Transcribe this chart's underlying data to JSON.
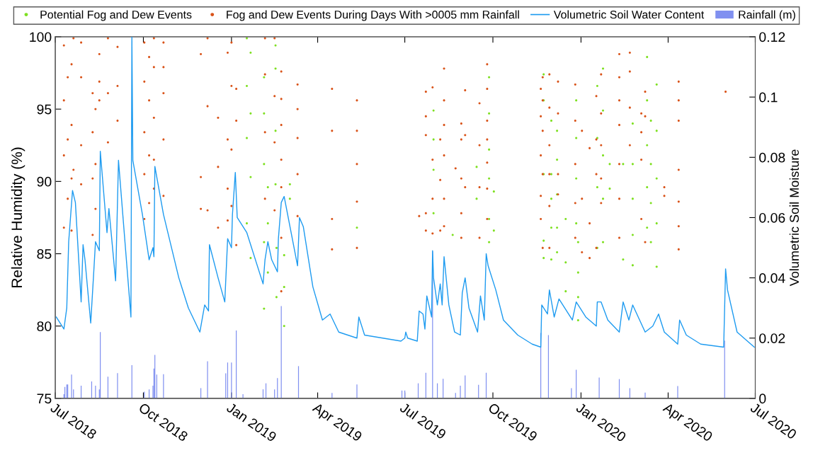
{
  "chart_data": {
    "type": "scatter",
    "ylabel": "Relative Humidity (%)",
    "y2label": "Volumetric Soil Moisture",
    "legend": "top",
    "marker": "circle",
    "xlim": [
      "2018-07-01",
      "2020-07-01"
    ],
    "xticks": [
      {
        "value": "2018-07-01",
        "label": "Jul 2018"
      },
      {
        "value": "2018-10-01",
        "label": "Oct 2018"
      },
      {
        "value": "2019-01-01",
        "label": "Jan 2019"
      },
      {
        "value": "2019-04-01",
        "label": "Apr 2019"
      },
      {
        "value": "2019-07-01",
        "label": "Jul 2019"
      },
      {
        "value": "2019-10-01",
        "label": "Oct 2019"
      },
      {
        "value": "2020-01-01",
        "label": "Jan 2020"
      },
      {
        "value": "2020-04-01",
        "label": "Apr 2020"
      },
      {
        "value": "2020-07-01",
        "label": "Jul 2020"
      }
    ],
    "ylim": [
      75,
      100
    ],
    "yticks": [
      75,
      80,
      85,
      90,
      95,
      100
    ],
    "y2lim": [
      0,
      0.12
    ],
    "y2ticks": [
      0,
      0.02,
      0.04,
      0.06,
      0.08,
      0.1,
      0.12
    ],
    "series": [
      {
        "name": "Potential Fog and Dew Events",
        "color": "#7ee021",
        "x": [
          "2019-01-17",
          "2019-01-17",
          "2019-01-17",
          "2019-01-17",
          "2019-01-21",
          "2019-01-21",
          "2019-01-21",
          "2019-01-21",
          "2019-02-04",
          "2019-02-04",
          "2019-02-04",
          "2019-02-04",
          "2019-02-04",
          "2019-02-08",
          "2019-02-08",
          "2019-02-08",
          "2019-02-16",
          "2019-02-16",
          "2019-02-16",
          "2019-02-16",
          "2019-02-17",
          "2019-02-17",
          "2019-02-25",
          "2019-02-25",
          "2019-02-25",
          "2019-03-03",
          "2019-03-03",
          "2019-05-12",
          "2019-07-31",
          "2019-07-31",
          "2019-07-31",
          "2019-07-31",
          "2019-08-20",
          "2019-09-14",
          "2019-09-14",
          "2019-09-27",
          "2019-09-27",
          "2019-09-27",
          "2019-09-27",
          "2019-09-27",
          "2019-09-27",
          "2019-10-02",
          "2019-10-02",
          "2019-11-23",
          "2019-11-23",
          "2019-11-23",
          "2019-11-23",
          "2019-11-23",
          "2019-12-01",
          "2019-12-01",
          "2019-12-01",
          "2019-12-01",
          "2019-12-01",
          "2019-12-07",
          "2019-12-07",
          "2019-12-07",
          "2019-12-07",
          "2019-12-07",
          "2019-12-16",
          "2019-12-16",
          "2019-12-16",
          "2019-12-27",
          "2019-12-27",
          "2019-12-27",
          "2019-12-27",
          "2019-12-29",
          "2019-12-29",
          "2019-12-29",
          "2019-12-29",
          "2020-01-18",
          "2020-01-18",
          "2020-01-18",
          "2020-01-18",
          "2020-01-24",
          "2020-01-24",
          "2020-01-24",
          "2020-01-24",
          "2020-01-24",
          "2020-01-31",
          "2020-01-31",
          "2020-02-14",
          "2020-02-14",
          "2020-02-24",
          "2020-02-24",
          "2020-02-24",
          "2020-02-24",
          "2020-02-24",
          "2020-03-10",
          "2020-03-10",
          "2020-03-10",
          "2020-03-10",
          "2020-03-10",
          "2020-03-14",
          "2020-03-14",
          "2020-03-14",
          "2020-03-14",
          "2020-03-20",
          "2020-03-20",
          "2020-03-20",
          "2020-03-20",
          "2020-03-20"
        ],
        "values": [
          99.9,
          96.6,
          93.0,
          87.1,
          98.9,
          94.7,
          90.3,
          84.7,
          97.2,
          94.7,
          91.2,
          85.8,
          81.2,
          89.6,
          87.1,
          83.7,
          99.4,
          97.8,
          93.5,
          89.8,
          85.4,
          82.0,
          84.9,
          82.7,
          80.0,
          89.8,
          88.8,
          86.8,
          94.9,
          92.9,
          90.8,
          87.8,
          86.3,
          91.0,
          88.8,
          97.2,
          94.7,
          92.2,
          90.2,
          87.4,
          85.8,
          89.3,
          86.6,
          97.4,
          95.6,
          90.5,
          85.9,
          84.7,
          94.2,
          90.5,
          88.8,
          86.8,
          84.6,
          93.5,
          91.5,
          89.1,
          86.8,
          85.1,
          87.4,
          84.4,
          82.4,
          95.6,
          93.0,
          90.2,
          87.1,
          85.8,
          83.7,
          82.0,
          80.4,
          96.6,
          93.0,
          89.6,
          85.4,
          97.8,
          94.9,
          91.8,
          88.8,
          85.8,
          91.2,
          89.5,
          91.2,
          84.6,
          94.0,
          91.2,
          88.8,
          86.3,
          84.2,
          98.6,
          95.6,
          92.5,
          89.6,
          86.8,
          94.2,
          91.2,
          88.5,
          85.8,
          96.7,
          93.5,
          90.2,
          87.1,
          84.1
        ]
      },
      {
        "name": "Fog and Dew Events During Days With >0005 mm Rainfall",
        "color": "#d95319",
        "x": [
          "2018-07-10",
          "2018-07-10",
          "2018-07-10",
          "2018-07-10",
          "2018-07-14",
          "2018-07-14",
          "2018-07-14",
          "2018-07-18",
          "2018-07-18",
          "2018-07-18",
          "2018-07-18",
          "2018-07-20",
          "2018-07-20",
          "2018-07-28",
          "2018-07-28",
          "2018-07-28",
          "2018-07-28",
          "2018-08-09",
          "2018-08-09",
          "2018-08-09",
          "2018-08-09",
          "2018-08-12",
          "2018-08-12",
          "2018-08-12",
          "2018-08-16",
          "2018-08-16",
          "2018-08-16",
          "2018-08-25",
          "2018-08-25",
          "2018-08-25",
          "2018-09-04",
          "2018-09-04",
          "2018-09-04",
          "2018-10-02",
          "2018-10-02",
          "2018-10-02",
          "2018-10-02",
          "2018-10-02",
          "2018-10-07",
          "2018-10-07",
          "2018-10-07",
          "2018-10-07",
          "2018-10-12",
          "2018-10-12",
          "2018-10-12",
          "2018-10-12",
          "2018-10-12",
          "2018-10-22",
          "2018-10-22",
          "2018-10-22",
          "2018-10-22",
          "2018-10-22",
          "2018-11-30",
          "2018-11-30",
          "2018-11-30",
          "2018-12-07",
          "2018-12-07",
          "2018-12-07",
          "2018-12-18",
          "2018-12-18",
          "2018-12-18",
          "2018-12-28",
          "2018-12-28",
          "2018-12-28",
          "2018-12-28",
          "2019-01-01",
          "2019-01-01",
          "2019-01-01",
          "2019-01-01",
          "2019-01-06",
          "2019-01-06",
          "2019-01-06",
          "2019-02-05",
          "2019-02-05",
          "2019-02-05",
          "2019-02-05",
          "2019-02-15",
          "2019-02-15",
          "2019-02-15",
          "2019-02-15",
          "2019-02-22",
          "2019-02-22",
          "2019-02-22",
          "2019-02-22",
          "2019-02-22",
          "2019-02-22",
          "2019-02-22",
          "2019-03-11",
          "2019-03-11",
          "2019-03-11",
          "2019-03-11",
          "2019-03-11",
          "2019-04-16",
          "2019-04-16",
          "2019-04-16",
          "2019-04-16",
          "2019-05-12",
          "2019-05-12",
          "2019-05-12",
          "2019-05-12",
          "2019-05-12",
          "2019-07-16",
          "2019-07-23",
          "2019-07-23",
          "2019-07-23",
          "2019-07-23",
          "2019-07-23",
          "2019-07-30",
          "2019-07-30",
          "2019-07-30",
          "2019-07-30",
          "2019-08-07",
          "2019-08-07",
          "2019-08-07",
          "2019-08-11",
          "2019-08-11",
          "2019-08-11",
          "2019-08-11",
          "2019-08-11",
          "2019-08-11",
          "2019-08-23",
          "2019-08-29",
          "2019-08-29",
          "2019-08-29",
          "2019-08-29",
          "2019-08-29",
          "2019-09-02",
          "2019-09-02",
          "2019-09-02",
          "2019-09-17",
          "2019-09-17",
          "2019-09-17",
          "2019-09-17",
          "2019-09-25",
          "2019-09-25",
          "2019-09-25",
          "2019-09-25",
          "2019-09-25",
          "2019-09-25",
          "2019-09-25",
          "2019-11-20",
          "2019-11-20",
          "2019-11-20",
          "2019-11-20",
          "2019-11-20",
          "2019-11-22",
          "2019-11-22",
          "2019-11-22",
          "2019-11-22",
          "2019-11-22",
          "2019-11-29",
          "2019-11-29",
          "2019-11-29",
          "2019-11-29",
          "2019-11-29",
          "2019-11-29",
          "2019-12-08",
          "2019-12-08",
          "2019-12-08",
          "2019-12-08",
          "2019-12-26",
          "2019-12-26",
          "2019-12-26",
          "2019-12-26",
          "2019-12-26",
          "2020-01-02",
          "2020-01-02",
          "2020-01-02",
          "2020-01-10",
          "2020-01-10",
          "2020-01-10",
          "2020-01-17",
          "2020-01-17",
          "2020-01-17",
          "2020-01-17",
          "2020-01-22",
          "2020-01-22",
          "2020-01-22",
          "2020-01-22",
          "2020-01-22",
          "2020-02-10",
          "2020-02-10",
          "2020-02-10",
          "2020-02-10",
          "2020-02-10",
          "2020-02-10",
          "2020-02-10",
          "2020-02-21",
          "2020-02-21",
          "2020-02-21",
          "2020-02-21",
          "2020-03-04",
          "2020-03-04",
          "2020-03-04",
          "2020-03-04",
          "2020-03-08",
          "2020-03-08",
          "2020-03-08",
          "2020-03-28",
          "2020-03-28",
          "2020-04-12",
          "2020-04-12",
          "2020-04-12",
          "2020-04-12",
          "2020-04-12",
          "2020-04-12",
          "2020-04-12",
          "2020-05-31"
        ],
        "values": [
          99.4,
          95.6,
          91.8,
          86.8,
          97.2,
          92.9,
          88.8,
          98.1,
          93.9,
          90.2,
          86.6,
          99.9,
          90.8,
          99.6,
          97.2,
          92.5,
          89.8,
          96.1,
          93.4,
          90.2,
          86.3,
          95.0,
          91.2,
          88.1,
          98.8,
          96.9,
          95.6,
          99.9,
          96.1,
          92.7,
          99.3,
          96.6,
          94.2,
          99.6,
          96.9,
          93.4,
          90.5,
          87.4,
          98.6,
          95.6,
          91.8,
          88.5,
          99.9,
          97.9,
          94.4,
          91.5,
          89.5,
          99.6,
          97.9,
          96.1,
          92.9,
          89.0,
          98.8,
          90.3,
          88.1,
          99.9,
          95.2,
          88.0,
          94.4,
          91.0,
          86.8,
          98.9,
          92.9,
          89.5,
          87.3,
          99.6,
          96.6,
          92.2,
          88.3,
          96.4,
          94.2,
          85.6,
          99.9,
          97.4,
          93.4,
          88.8,
          99.9,
          95.9,
          92.7,
          88.0,
          97.6,
          95.7,
          93.9,
          91.5,
          89.6,
          86.1,
          82.4,
          96.7,
          95.0,
          93.0,
          90.5,
          87.6,
          96.4,
          93.5,
          87.4,
          85.3,
          95.6,
          93.5,
          91.2,
          88.6,
          85.4,
          87.6,
          96.2,
          94.5,
          93.2,
          87.8,
          86.6,
          96.5,
          91.5,
          88.8,
          86.4,
          92.9,
          90.1,
          86.6,
          97.8,
          95.6,
          93.9,
          91.8,
          88.8,
          86.9,
          90.9,
          94.0,
          92.9,
          90.2,
          87.8,
          86.1,
          96.3,
          93.2,
          89.6,
          95.4,
          92.5,
          89.6,
          86.1,
          98.1,
          96.4,
          94.2,
          92.9,
          91.3,
          89.5,
          87.4,
          96.4,
          94.5,
          91.8,
          89.0,
          87.4,
          97.2,
          95.6,
          93.5,
          90.5,
          85.4,
          97.4,
          95.1,
          92.5,
          90.5,
          88.3,
          85.4,
          96.9,
          94.7,
          90.5,
          89.1,
          96.7,
          94.2,
          91.2,
          88.5,
          86.1,
          93.5,
          88.8,
          85.1,
          92.3,
          87.1,
          84.7,
          95.9,
          92.9,
          90.5,
          85.4,
          97.4,
          94.7,
          92.5,
          90.2,
          88.5,
          98.8,
          97.2,
          95.6,
          93.9,
          91.2,
          88.8,
          86.1,
          98.9,
          97.6,
          95.1,
          92.5,
          94.7,
          93.4,
          91.5,
          87.4,
          96.2,
          94.5,
          85.8,
          89.6,
          89.0,
          96.9,
          95.6,
          94.2,
          90.8,
          88.6,
          86.9,
          85.3,
          96.2
        ]
      },
      {
        "name": "Volumetric Soil Water Content",
        "type": "line",
        "marker": "none",
        "axis": "y2",
        "color": "#1e9bf0",
        "x": [
          "2018-07-02",
          "2018-07-10",
          "2018-07-13",
          "2018-07-15",
          "2018-07-19",
          "2018-07-22",
          "2018-07-28",
          "2018-07-30",
          "2018-08-01",
          "2018-08-07",
          "2018-08-10",
          "2018-08-12",
          "2018-08-16",
          "2018-08-17",
          "2018-08-24",
          "2018-08-26",
          "2018-09-02",
          "2018-09-05",
          "2018-09-18",
          "2018-09-19",
          "2018-09-20",
          "2018-09-30",
          "2018-10-07",
          "2018-10-11",
          "2018-10-12",
          "2018-10-13",
          "2018-10-22",
          "2018-11-07",
          "2018-11-17",
          "2018-11-29",
          "2018-12-04",
          "2018-12-08",
          "2018-12-09",
          "2018-12-18",
          "2018-12-25",
          "2018-12-28",
          "2019-01-01",
          "2019-01-02",
          "2019-01-05",
          "2019-01-07",
          "2019-01-17",
          "2019-02-03",
          "2019-02-05",
          "2019-02-08",
          "2019-02-12",
          "2019-02-18",
          "2019-02-19",
          "2019-02-22",
          "2019-02-25",
          "2019-03-11",
          "2019-03-13",
          "2019-03-17",
          "2019-03-27",
          "2019-04-06",
          "2019-04-14",
          "2019-04-23",
          "2019-05-12",
          "2019-05-14",
          "2019-05-20",
          "2019-06-27",
          "2019-07-01",
          "2019-07-02",
          "2019-07-04",
          "2019-07-14",
          "2019-07-16",
          "2019-07-20",
          "2019-07-22",
          "2019-07-24",
          "2019-07-29",
          "2019-07-30",
          "2019-07-31",
          "2019-08-04",
          "2019-08-07",
          "2019-08-09",
          "2019-08-11",
          "2019-08-16",
          "2019-08-22",
          "2019-08-28",
          "2019-08-30",
          "2019-09-02",
          "2019-09-06",
          "2019-09-15",
          "2019-09-18",
          "2019-09-22",
          "2019-09-24",
          "2019-09-26",
          "2019-10-04",
          "2019-10-12",
          "2019-10-27",
          "2019-11-11",
          "2019-11-20",
          "2019-11-21",
          "2019-11-27",
          "2019-11-29",
          "2019-12-04",
          "2019-12-09",
          "2019-12-23",
          "2019-12-27",
          "2020-01-06",
          "2020-01-17",
          "2020-01-18",
          "2020-01-22",
          "2020-01-29",
          "2020-02-10",
          "2020-02-14",
          "2020-02-20",
          "2020-02-24",
          "2020-03-08",
          "2020-03-16",
          "2020-03-22",
          "2020-03-28",
          "2020-04-11",
          "2020-04-13",
          "2020-04-20",
          "2020-05-05",
          "2020-05-29",
          "2020-05-31",
          "2020-06-02",
          "2020-06-12",
          "2020-06-30"
        ],
        "values": [
          0.027,
          0.023,
          0.03,
          0.052,
          0.069,
          0.065,
          0.032,
          0.051,
          0.046,
          0.025,
          0.041,
          0.052,
          0.049,
          0.082,
          0.055,
          0.063,
          0.039,
          0.079,
          0.027,
          0.12,
          0.079,
          0.061,
          0.046,
          0.05,
          0.047,
          0.077,
          0.061,
          0.04,
          0.03,
          0.022,
          0.031,
          0.029,
          0.051,
          0.04,
          0.032,
          0.053,
          0.05,
          0.061,
          0.075,
          0.06,
          0.055,
          0.038,
          0.046,
          0.052,
          0.046,
          0.042,
          0.053,
          0.065,
          0.067,
          0.044,
          0.06,
          0.057,
          0.037,
          0.026,
          0.028,
          0.022,
          0.02,
          0.027,
          0.021,
          0.019,
          0.02,
          0.022,
          0.02,
          0.019,
          0.029,
          0.028,
          0.023,
          0.034,
          0.027,
          0.049,
          0.04,
          0.031,
          0.038,
          0.031,
          0.047,
          0.031,
          0.022,
          0.021,
          0.035,
          0.04,
          0.03,
          0.022,
          0.034,
          0.026,
          0.048,
          0.044,
          0.036,
          0.026,
          0.021,
          0.018,
          0.017,
          0.031,
          0.028,
          0.036,
          0.027,
          0.033,
          0.026,
          0.032,
          0.027,
          0.024,
          0.032,
          0.032,
          0.026,
          0.022,
          0.032,
          0.026,
          0.031,
          0.022,
          0.024,
          0.028,
          0.022,
          0.018,
          0.026,
          0.021,
          0.018,
          0.017,
          0.043,
          0.036,
          0.022,
          0.017
        ]
      },
      {
        "name": "Rainfall (m)",
        "type": "bar",
        "axis": "y2",
        "color": "#8090f0",
        "x": [
          "2018-07-10",
          "2018-07-11",
          "2018-07-13",
          "2018-07-14",
          "2018-07-18",
          "2018-07-20",
          "2018-07-28",
          "2018-08-08",
          "2018-08-12",
          "2018-08-16",
          "2018-08-17",
          "2018-08-25",
          "2018-09-04",
          "2018-09-19",
          "2018-10-02",
          "2018-10-07",
          "2018-10-11",
          "2018-10-12",
          "2018-10-13",
          "2018-10-15",
          "2018-10-22",
          "2018-11-30",
          "2018-12-07",
          "2018-12-26",
          "2018-12-28",
          "2019-01-01",
          "2019-01-06",
          "2019-01-13",
          "2019-02-03",
          "2019-02-06",
          "2019-02-15",
          "2019-02-18",
          "2019-02-22",
          "2019-03-12",
          "2019-04-16",
          "2019-05-12",
          "2019-06-28",
          "2019-07-01",
          "2019-07-15",
          "2019-07-23",
          "2019-07-30",
          "2019-08-04",
          "2019-08-10",
          "2019-08-23",
          "2019-08-28",
          "2019-09-02",
          "2019-09-16",
          "2019-09-24",
          "2019-11-20",
          "2019-11-28",
          "2019-12-22",
          "2019-12-27",
          "2020-01-20",
          "2020-02-10",
          "2020-02-21",
          "2020-03-08",
          "2020-04-11",
          "2020-05-30"
        ],
        "values": [
          0.0014,
          0.0038,
          0.0046,
          0.0046,
          0.0079,
          0.003,
          0.0042,
          0.0056,
          0.0042,
          0.003,
          0.022,
          0.0072,
          0.0084,
          0.011,
          0.0022,
          0.003,
          0.0042,
          0.0099,
          0.0144,
          0.0079,
          0.008,
          0.0034,
          0.0123,
          0.0083,
          0.0119,
          0.0119,
          0.0225,
          0.0014,
          0.003,
          0.005,
          0.003,
          0.0067,
          0.0306,
          0.0107,
          0.0018,
          0.0046,
          0.0026,
          0.0026,
          0.005,
          0.0085,
          0.0488,
          0.005,
          0.0065,
          0.0018,
          0.0042,
          0.0076,
          0.0045,
          0.0085,
          0.0217,
          0.021,
          0.0034,
          0.0095,
          0.0069,
          0.0064,
          0.0034,
          0.0019,
          0.0041,
          0.0192
        ]
      }
    ]
  }
}
